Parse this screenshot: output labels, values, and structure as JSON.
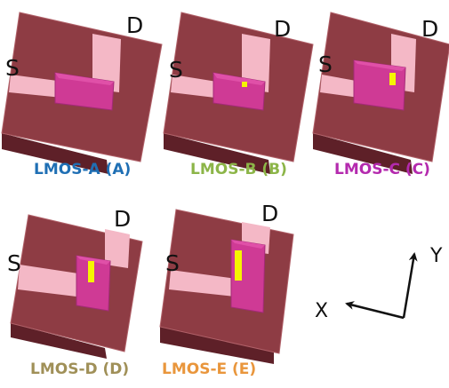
{
  "panels": [
    {
      "id": "A",
      "source": "S",
      "drain": "D",
      "caption": "LMOS-A (A)",
      "caption_color": "#1F6FB4",
      "insert": "none"
    },
    {
      "id": "B",
      "source": "S",
      "drain": "D",
      "caption": "LMOS-B (B)",
      "caption_color": "#8CB548",
      "insert": "small"
    },
    {
      "id": "C",
      "source": "S",
      "drain": "D",
      "caption": "LMOS-C (C)",
      "caption_color": "#B42AAE",
      "insert": "medium"
    },
    {
      "id": "D",
      "source": "S",
      "drain": "D",
      "caption": "LMOS-D (D)",
      "caption_color": "#A09058",
      "insert": "long"
    },
    {
      "id": "E",
      "source": "S",
      "drain": "D",
      "caption": "LMOS-E (E)",
      "caption_color": "#E9963C",
      "insert": "longest"
    }
  ],
  "axes": {
    "x_label": "X",
    "y_label": "Y"
  },
  "colors": {
    "substrate": "#8E3C44",
    "substrate_dark": "#5E2028",
    "substrate_edge": "#B06068",
    "contact": "#F4B8C6",
    "gate": "#CF3A95",
    "gate_top": "#E050A8",
    "insert": "#F5F500"
  }
}
